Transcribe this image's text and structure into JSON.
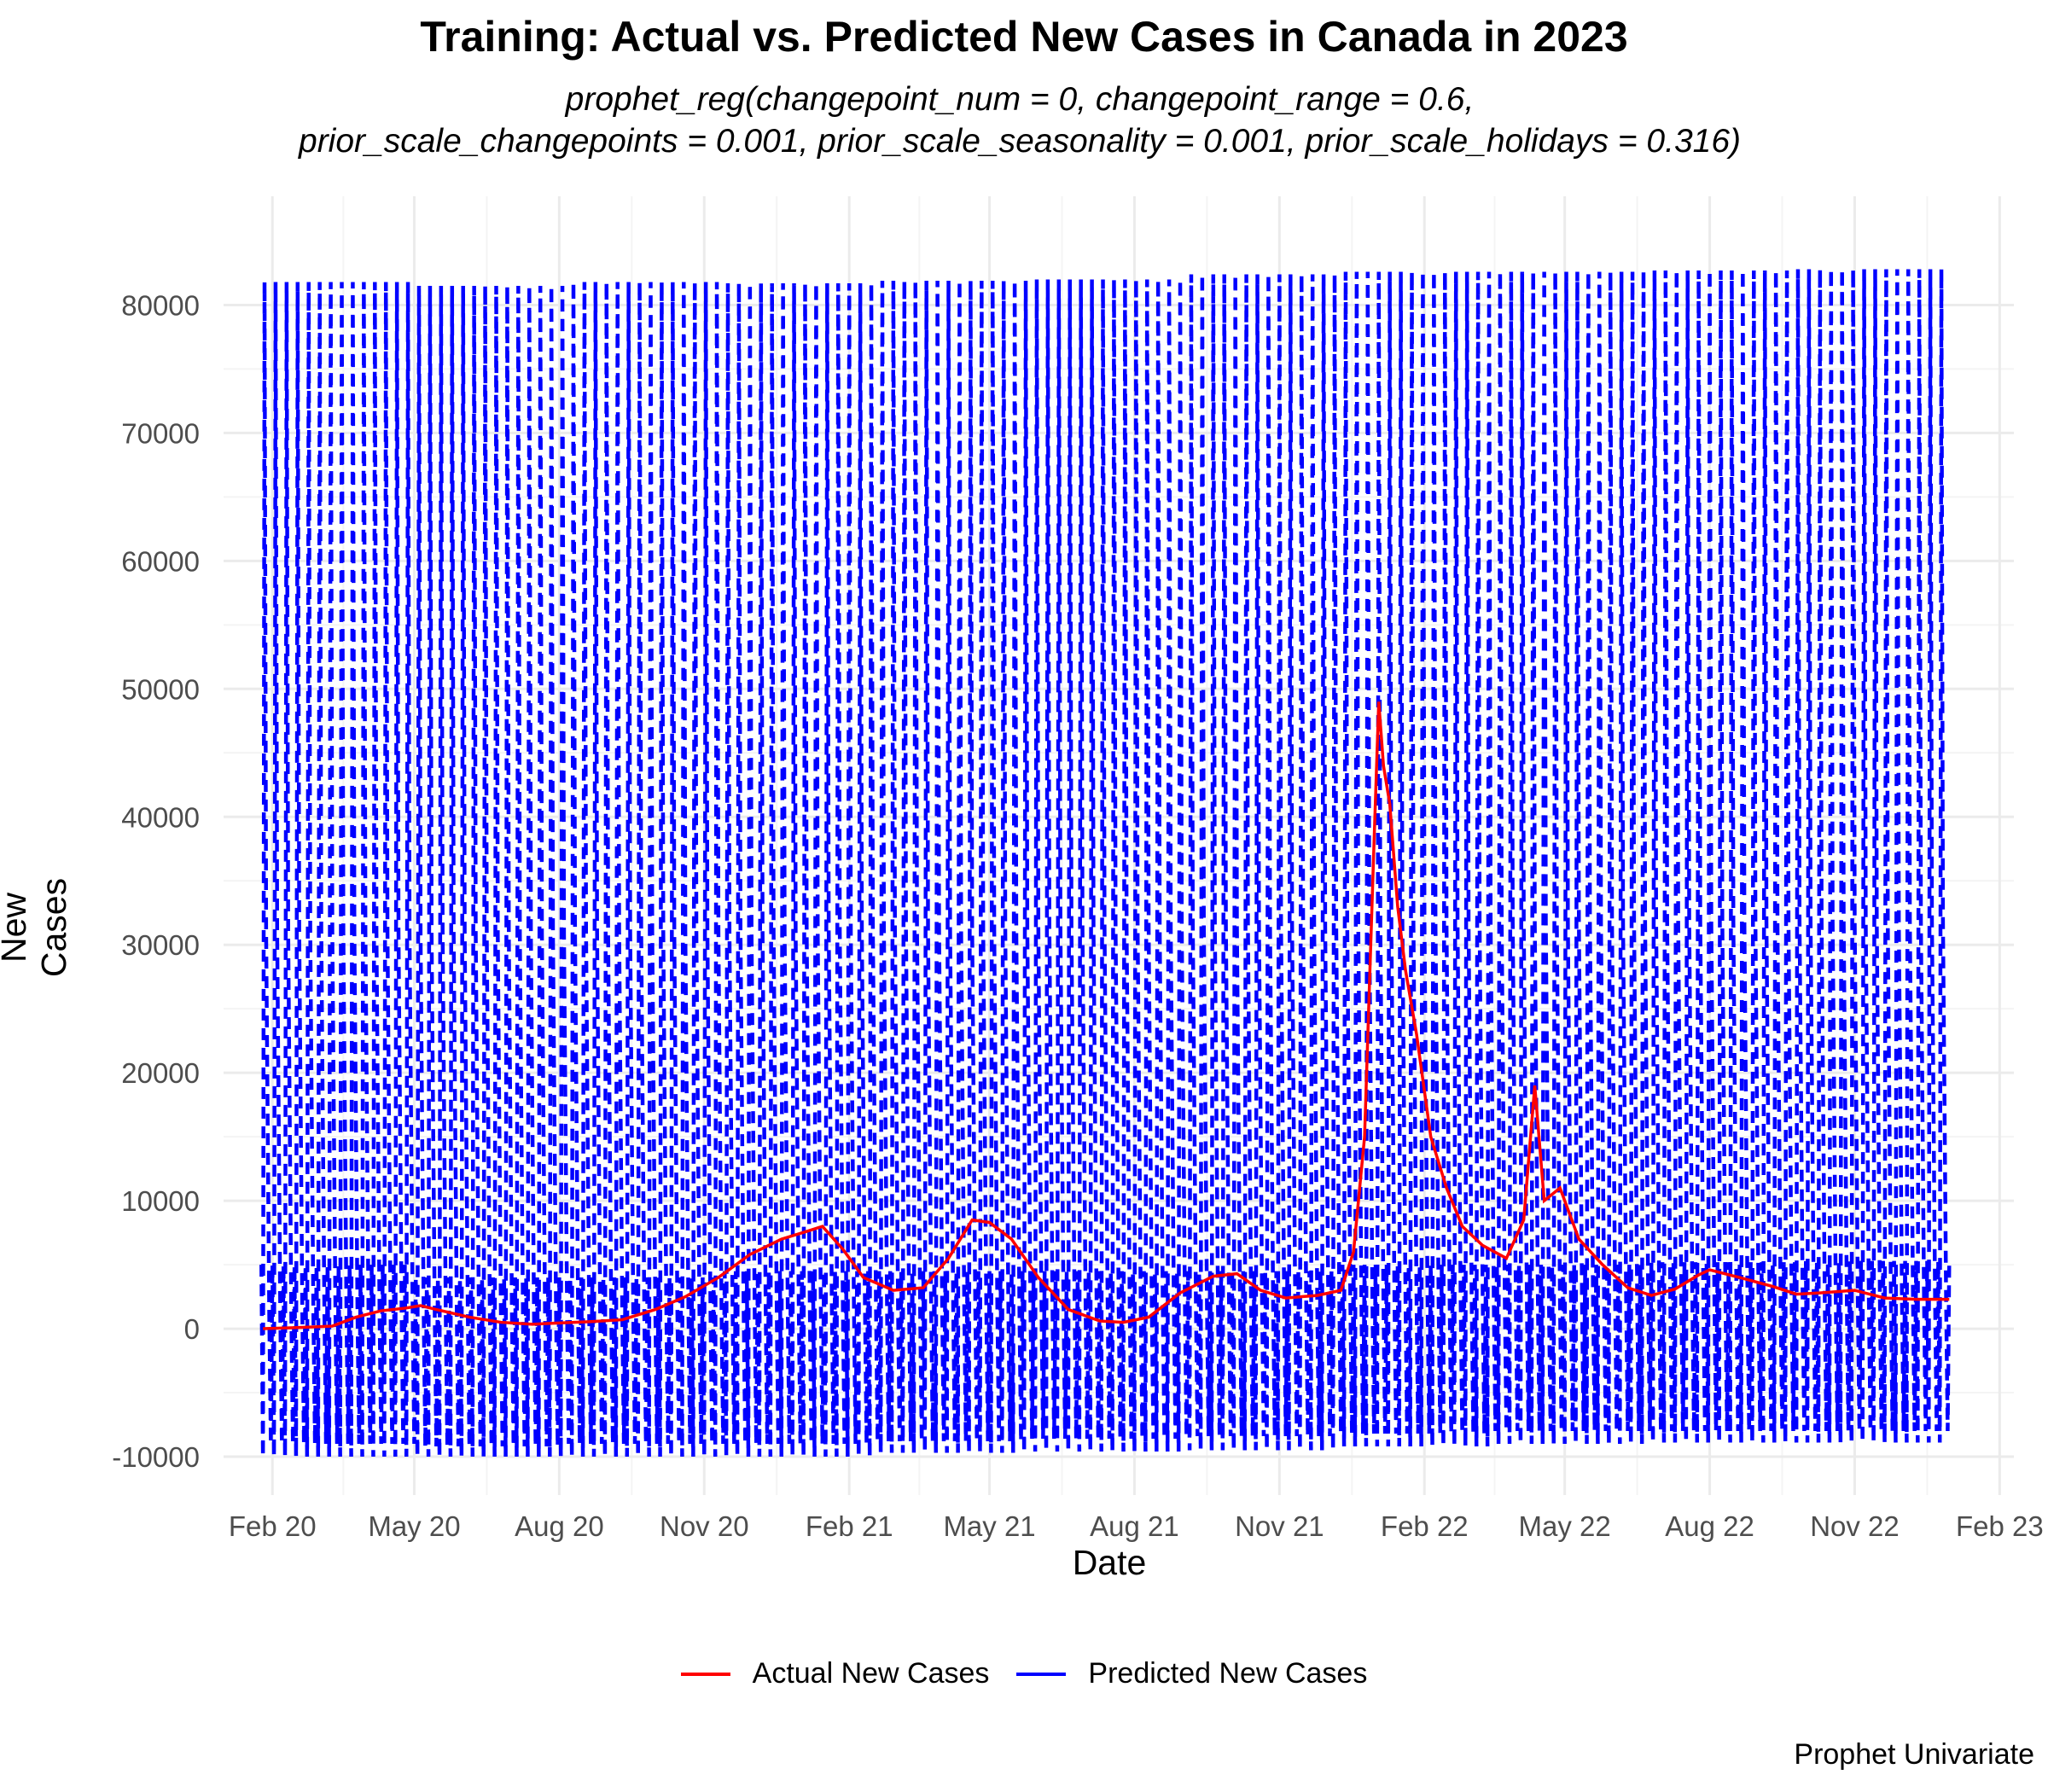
{
  "chart_data": {
    "type": "line",
    "title": "Training: Actual vs. Predicted New Cases in Canada in 2023",
    "subtitle_lines": [
      "prophet_reg(changepoint_num = 0, changepoint_range = 0.6,",
      "prior_scale_changepoints = 0.001, prior_scale_seasonality = 0.001, prior_scale_holidays = 0.316)"
    ],
    "caption": "Prophet Univariate",
    "xlabel": "Date",
    "ylabel": "New Cases",
    "x_range": [
      "2020-01-01",
      "2023-02-10"
    ],
    "x_ticks": [
      {
        "date": "2020-02-01",
        "label": "Feb 20"
      },
      {
        "date": "2020-05-01",
        "label": "May 20"
      },
      {
        "date": "2020-08-01",
        "label": "Aug 20"
      },
      {
        "date": "2020-11-01",
        "label": "Nov 20"
      },
      {
        "date": "2021-02-01",
        "label": "Feb 21"
      },
      {
        "date": "2021-05-01",
        "label": "May 21"
      },
      {
        "date": "2021-08-01",
        "label": "Aug 21"
      },
      {
        "date": "2021-11-01",
        "label": "Nov 21"
      },
      {
        "date": "2022-02-01",
        "label": "Feb 22"
      },
      {
        "date": "2022-05-01",
        "label": "May 22"
      },
      {
        "date": "2022-08-01",
        "label": "Aug 22"
      },
      {
        "date": "2022-11-01",
        "label": "Nov 22"
      },
      {
        "date": "2023-02-01",
        "label": "Feb 23"
      }
    ],
    "ylim": [
      -13000,
      88500
    ],
    "y_ticks": [
      -10000,
      0,
      10000,
      20000,
      30000,
      40000,
      50000,
      60000,
      70000,
      80000
    ],
    "grid": true,
    "legend_position": "bottom",
    "series": [
      {
        "name": "Actual New Cases",
        "color": "#ff0000",
        "line_style": "solid",
        "points": [
          [
            "2020-01-26",
            0
          ],
          [
            "2020-02-15",
            80
          ],
          [
            "2020-03-10",
            200
          ],
          [
            "2020-03-25",
            900
          ],
          [
            "2020-04-10",
            1400
          ],
          [
            "2020-04-25",
            1600
          ],
          [
            "2020-05-05",
            1800
          ],
          [
            "2020-05-15",
            1500
          ],
          [
            "2020-06-05",
            900
          ],
          [
            "2020-06-25",
            500
          ],
          [
            "2020-07-15",
            350
          ],
          [
            "2020-08-01",
            450
          ],
          [
            "2020-08-20",
            550
          ],
          [
            "2020-09-10",
            700
          ],
          [
            "2020-10-01",
            1500
          ],
          [
            "2020-10-20",
            2500
          ],
          [
            "2020-11-10",
            4000
          ],
          [
            "2020-11-30",
            5800
          ],
          [
            "2020-12-20",
            7000
          ],
          [
            "2021-01-05",
            7600
          ],
          [
            "2021-01-15",
            8000
          ],
          [
            "2021-01-28",
            6200
          ],
          [
            "2021-02-10",
            4000
          ],
          [
            "2021-03-01",
            3000
          ],
          [
            "2021-03-20",
            3200
          ],
          [
            "2021-04-05",
            5500
          ],
          [
            "2021-04-20",
            8500
          ],
          [
            "2021-05-01",
            8300
          ],
          [
            "2021-05-15",
            7000
          ],
          [
            "2021-06-01",
            4000
          ],
          [
            "2021-06-20",
            1500
          ],
          [
            "2021-07-10",
            600
          ],
          [
            "2021-07-25",
            500
          ],
          [
            "2021-08-10",
            900
          ],
          [
            "2021-08-30",
            2800
          ],
          [
            "2021-09-20",
            4100
          ],
          [
            "2021-10-05",
            4300
          ],
          [
            "2021-10-20",
            3000
          ],
          [
            "2021-11-05",
            2400
          ],
          [
            "2021-11-25",
            2600
          ],
          [
            "2021-12-10",
            3000
          ],
          [
            "2021-12-18",
            6000
          ],
          [
            "2021-12-25",
            15000
          ],
          [
            "2021-12-31",
            38000
          ],
          [
            "2022-01-03",
            49000
          ],
          [
            "2022-01-06",
            44000
          ],
          [
            "2022-01-10",
            41000
          ],
          [
            "2022-01-15",
            33000
          ],
          [
            "2022-01-20",
            28000
          ],
          [
            "2022-01-27",
            23000
          ],
          [
            "2022-02-05",
            15000
          ],
          [
            "2022-02-15",
            11000
          ],
          [
            "2022-02-25",
            8000
          ],
          [
            "2022-03-10",
            6500
          ],
          [
            "2022-03-25",
            5500
          ],
          [
            "2022-04-05",
            8500
          ],
          [
            "2022-04-12",
            19000
          ],
          [
            "2022-04-18",
            10000
          ],
          [
            "2022-04-28",
            11000
          ],
          [
            "2022-05-10",
            7000
          ],
          [
            "2022-05-25",
            5000
          ],
          [
            "2022-06-10",
            3200
          ],
          [
            "2022-06-25",
            2600
          ],
          [
            "2022-07-10",
            3100
          ],
          [
            "2022-07-25",
            4200
          ],
          [
            "2022-08-01",
            4600
          ],
          [
            "2022-08-20",
            4000
          ],
          [
            "2022-09-10",
            3300
          ],
          [
            "2022-09-25",
            2700
          ],
          [
            "2022-10-10",
            2800
          ],
          [
            "2022-11-01",
            3000
          ],
          [
            "2022-11-20",
            2400
          ],
          [
            "2022-12-10",
            2300
          ],
          [
            "2022-12-31",
            2300
          ]
        ]
      },
      {
        "name": "Predicted New Cases",
        "color": "#0000ff",
        "line_style": "dashed",
        "points": [
          [
            "2020-01-25",
            5000
          ],
          [
            "2020-01-26",
            -10000
          ],
          [
            "2020-01-27",
            81800
          ],
          [
            "2020-01-28",
            31000
          ],
          [
            "2020-01-29",
            16000
          ],
          [
            "2020-01-30",
            1000
          ],
          [
            "2020-01-31",
            -9000
          ],
          [
            "2020-04-18",
            4000
          ],
          [
            "2020-04-19",
            -10000
          ],
          [
            "2020-04-20",
            81500
          ],
          [
            "2020-04-21",
            30800
          ],
          [
            "2020-04-22",
            15800
          ],
          [
            "2020-04-23",
            1000
          ],
          [
            "2020-04-24",
            -9200
          ],
          [
            "2020-08-08",
            4000
          ],
          [
            "2020-08-09",
            -10000
          ],
          [
            "2020-08-10",
            81800
          ],
          [
            "2020-08-11",
            31000
          ],
          [
            "2020-08-12",
            16000
          ],
          [
            "2020-08-13",
            1000
          ],
          [
            "2020-08-14",
            -9000
          ],
          [
            "2020-11-21",
            4500
          ],
          [
            "2020-11-22",
            -10000
          ],
          [
            "2020-11-23",
            81700
          ],
          [
            "2020-11-24",
            31000
          ],
          [
            "2020-11-25",
            16500
          ],
          [
            "2020-11-26",
            1500
          ],
          [
            "2020-11-27",
            -9000
          ],
          [
            "2021-03-06",
            4500
          ],
          [
            "2021-03-07",
            -9700
          ],
          [
            "2021-03-08",
            81900
          ],
          [
            "2021-03-09",
            31200
          ],
          [
            "2021-03-10",
            16500
          ],
          [
            "2021-03-11",
            1500
          ],
          [
            "2021-03-12",
            -8800
          ],
          [
            "2021-06-19",
            4500
          ],
          [
            "2021-06-20",
            -9600
          ],
          [
            "2021-06-21",
            82000
          ],
          [
            "2021-06-22",
            31300
          ],
          [
            "2021-06-23",
            16600
          ],
          [
            "2021-06-24",
            1600
          ],
          [
            "2021-06-25",
            -8600
          ],
          [
            "2021-10-02",
            4500
          ],
          [
            "2021-10-03",
            -9500
          ],
          [
            "2021-10-04",
            82400
          ],
          [
            "2021-10-05",
            31500
          ],
          [
            "2021-10-06",
            16800
          ],
          [
            "2021-10-07",
            1800
          ],
          [
            "2021-10-08",
            -8400
          ],
          [
            "2022-01-15",
            5000
          ],
          [
            "2022-01-16",
            -9200
          ],
          [
            "2022-01-17",
            82600
          ],
          [
            "2022-01-18",
            31600
          ],
          [
            "2022-01-19",
            17000
          ],
          [
            "2022-01-20",
            2000
          ],
          [
            "2022-01-21",
            -8200
          ],
          [
            "2022-04-30",
            5000
          ],
          [
            "2022-04-31",
            -9000
          ],
          [
            "2022-05-01",
            82600
          ],
          [
            "2022-05-02",
            31700
          ],
          [
            "2022-05-03",
            17200
          ],
          [
            "2022-05-04",
            2100
          ],
          [
            "2022-05-05",
            -8000
          ],
          [
            "2022-08-13",
            5200
          ],
          [
            "2022-08-14",
            -8900
          ],
          [
            "2022-08-15",
            82700
          ],
          [
            "2022-08-16",
            31800
          ],
          [
            "2022-08-17",
            17300
          ],
          [
            "2022-08-18",
            2200
          ],
          [
            "2022-08-19",
            -8000
          ],
          [
            "2022-11-26",
            5300
          ],
          [
            "2022-11-27",
            -8900
          ],
          [
            "2022-11-28",
            82800
          ],
          [
            "2022-11-29",
            31800
          ],
          [
            "2022-11-30",
            17500
          ],
          [
            "2022-12-01",
            2300
          ],
          [
            "2022-12-02",
            -8000
          ],
          [
            "2022-12-28",
            5300
          ],
          [
            "2022-12-29",
            -9400
          ],
          [
            "2022-12-30",
            31900
          ],
          [
            "2022-12-31",
            17500
          ]
        ],
        "weekly_pattern_min": [
          -10000,
          0,
          4000,
          15500,
          30500,
          81500
        ],
        "weekly_pattern_note": "weekly cycle from about -10000 to about 82000 throughout the range"
      }
    ]
  }
}
